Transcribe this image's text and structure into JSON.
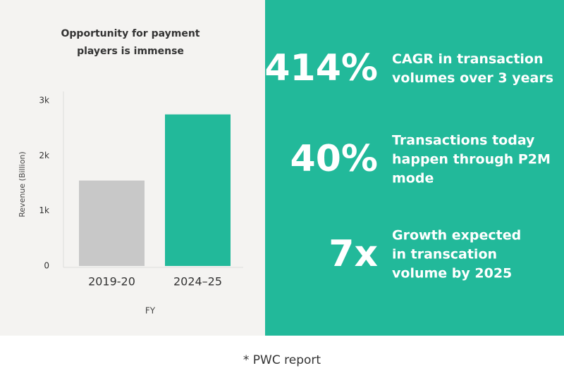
{
  "chart_data": {
    "type": "bar",
    "title": [
      "Opportunity for payment",
      "players is immense"
    ],
    "ylabel": "Revenue (Billion)",
    "xlabel": "FY",
    "categories": [
      "2019-20",
      "2024–25"
    ],
    "values": [
      1550,
      2750
    ],
    "colors": [
      "#c8c8c8",
      "#22b99a"
    ],
    "ylim": [
      0,
      3000
    ],
    "yticks": [
      0,
      {
        "value": 1000,
        "label": "1k"
      },
      {
        "value": 2000,
        "label": "2k"
      },
      {
        "value": 3000,
        "label": "3k"
      }
    ]
  },
  "stats": [
    {
      "figure": "414%",
      "lines": [
        "CAGR in transaction",
        "volumes over 3 years"
      ]
    },
    {
      "figure": "40%",
      "lines": [
        "Transactions today",
        "happen through P2M",
        "mode"
      ]
    },
    {
      "figure": "7x",
      "lines": [
        "Growth expected",
        "in transcation",
        "volume by 2025"
      ]
    }
  ],
  "footnote": "* PWC report"
}
